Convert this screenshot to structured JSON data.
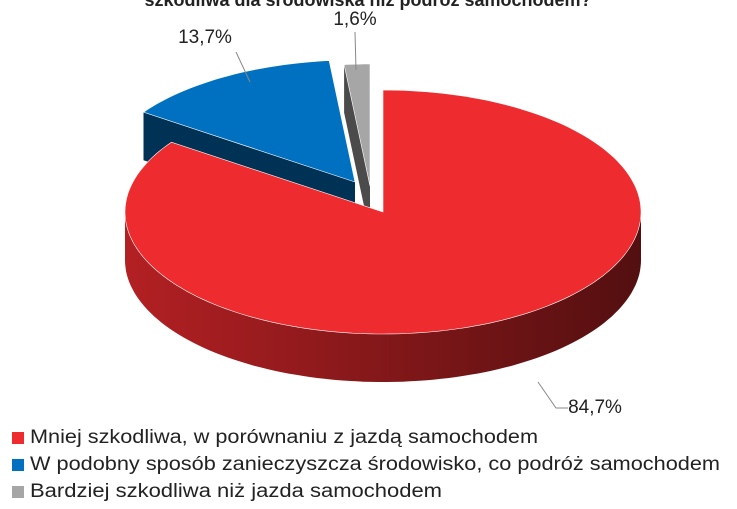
{
  "chart_data": {
    "type": "pie3d",
    "title": "szkodliwa dla środowiska niż podróż samochodem?",
    "categories": [
      "Mniej szkodliwa, w porównaniu z jazdą samochodem",
      "W podobny sposób zanieczyszcza środowisko, co podróż samochodem",
      "Bardziej szkodliwa niż jazda samochodem"
    ],
    "values": [
      84.7,
      13.7,
      1.6
    ],
    "value_labels": [
      "84,7%",
      "13,7%",
      "1,6%"
    ],
    "colors": [
      "#ee2b2f",
      "#0070c0",
      "#a6a6a6"
    ],
    "legend": "bottom"
  }
}
